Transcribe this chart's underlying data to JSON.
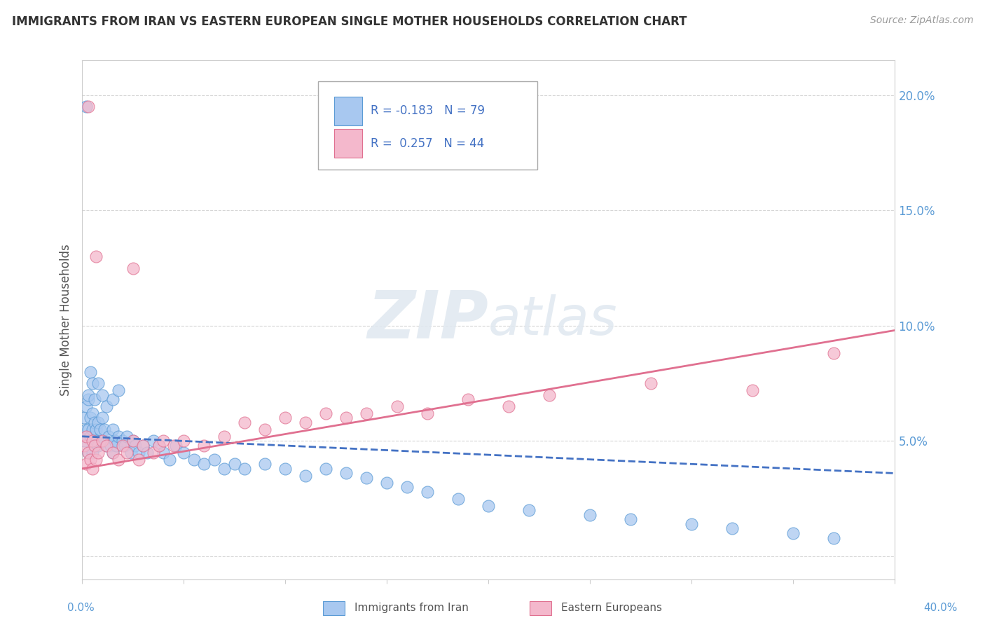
{
  "title": "IMMIGRANTS FROM IRAN VS EASTERN EUROPEAN SINGLE MOTHER HOUSEHOLDS CORRELATION CHART",
  "source": "Source: ZipAtlas.com",
  "ylabel": "Single Mother Households",
  "xlim": [
    0.0,
    0.4
  ],
  "ylim": [
    -0.01,
    0.215
  ],
  "legend_iran_R": "-0.183",
  "legend_iran_N": "79",
  "legend_ee_R": "0.257",
  "legend_ee_N": "44",
  "iran_fill_color": "#A8C8F0",
  "iran_edge_color": "#5B9BD5",
  "ee_fill_color": "#F4B8CC",
  "ee_edge_color": "#E07090",
  "iran_line_color": "#4472C4",
  "ee_line_color": "#E07090",
  "background_color": "#FFFFFF",
  "watermark_zip": "ZIP",
  "watermark_atlas": "atlas",
  "iran_x": [
    0.001,
    0.001,
    0.002,
    0.002,
    0.003,
    0.003,
    0.003,
    0.004,
    0.004,
    0.005,
    0.005,
    0.005,
    0.006,
    0.006,
    0.007,
    0.007,
    0.008,
    0.008,
    0.009,
    0.01,
    0.01,
    0.011,
    0.012,
    0.013,
    0.014,
    0.015,
    0.015,
    0.016,
    0.017,
    0.018,
    0.02,
    0.021,
    0.022,
    0.024,
    0.025,
    0.026,
    0.028,
    0.03,
    0.032,
    0.035,
    0.038,
    0.04,
    0.043,
    0.046,
    0.05,
    0.055,
    0.06,
    0.065,
    0.07,
    0.075,
    0.08,
    0.09,
    0.1,
    0.11,
    0.12,
    0.13,
    0.14,
    0.15,
    0.16,
    0.17,
    0.185,
    0.2,
    0.22,
    0.25,
    0.27,
    0.3,
    0.32,
    0.35,
    0.37,
    0.002,
    0.003,
    0.004,
    0.005,
    0.006,
    0.008,
    0.01,
    0.012,
    0.015,
    0.018
  ],
  "iran_y": [
    0.06,
    0.05,
    0.065,
    0.055,
    0.068,
    0.055,
    0.045,
    0.06,
    0.052,
    0.062,
    0.055,
    0.045,
    0.058,
    0.048,
    0.055,
    0.05,
    0.058,
    0.048,
    0.055,
    0.06,
    0.05,
    0.055,
    0.048,
    0.052,
    0.048,
    0.055,
    0.045,
    0.05,
    0.048,
    0.052,
    0.05,
    0.048,
    0.052,
    0.045,
    0.05,
    0.048,
    0.045,
    0.048,
    0.045,
    0.05,
    0.048,
    0.045,
    0.042,
    0.048,
    0.045,
    0.042,
    0.04,
    0.042,
    0.038,
    0.04,
    0.038,
    0.04,
    0.038,
    0.035,
    0.038,
    0.036,
    0.034,
    0.032,
    0.03,
    0.028,
    0.025,
    0.022,
    0.02,
    0.018,
    0.016,
    0.014,
    0.012,
    0.01,
    0.008,
    0.195,
    0.07,
    0.08,
    0.075,
    0.068,
    0.075,
    0.07,
    0.065,
    0.068,
    0.072
  ],
  "ee_x": [
    0.001,
    0.002,
    0.002,
    0.003,
    0.004,
    0.005,
    0.005,
    0.006,
    0.007,
    0.008,
    0.01,
    0.012,
    0.015,
    0.018,
    0.02,
    0.022,
    0.025,
    0.028,
    0.03,
    0.035,
    0.038,
    0.04,
    0.045,
    0.05,
    0.06,
    0.07,
    0.08,
    0.09,
    0.1,
    0.11,
    0.12,
    0.13,
    0.14,
    0.155,
    0.17,
    0.19,
    0.21,
    0.23,
    0.28,
    0.33,
    0.37,
    0.025,
    0.003,
    0.007
  ],
  "ee_y": [
    0.048,
    0.04,
    0.052,
    0.045,
    0.042,
    0.05,
    0.038,
    0.048,
    0.042,
    0.045,
    0.05,
    0.048,
    0.045,
    0.042,
    0.048,
    0.045,
    0.05,
    0.042,
    0.048,
    0.045,
    0.048,
    0.05,
    0.048,
    0.05,
    0.048,
    0.052,
    0.058,
    0.055,
    0.06,
    0.058,
    0.062,
    0.06,
    0.062,
    0.065,
    0.062,
    0.068,
    0.065,
    0.07,
    0.075,
    0.072,
    0.088,
    0.125,
    0.195,
    0.13
  ],
  "iran_reg_intercept": 0.052,
  "iran_reg_slope": -0.04,
  "ee_reg_intercept": 0.038,
  "ee_reg_slope": 0.15
}
